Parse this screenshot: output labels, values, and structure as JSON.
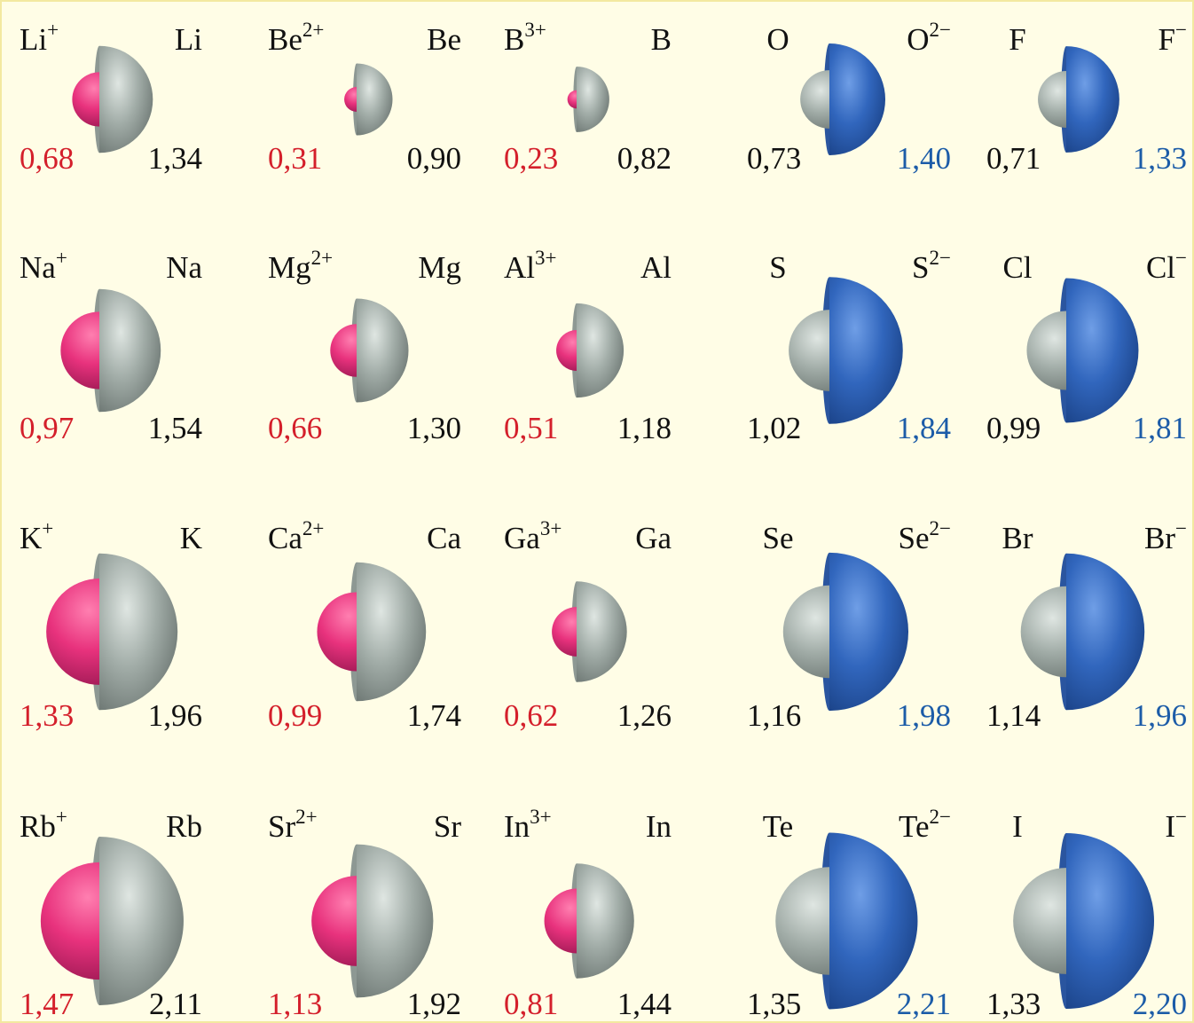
{
  "rows": [
    {
      "cations": [
        {
          "ion": "Li",
          "ion_charge": "+",
          "atom": "Li",
          "ion_radius": "0,68",
          "atom_radius": "1,34"
        },
        {
          "ion": "Be",
          "ion_charge": "2+",
          "atom": "Be",
          "ion_radius": "0,31",
          "atom_radius": "0,90"
        },
        {
          "ion": "B",
          "ion_charge": "3+",
          "atom": "B",
          "ion_radius": "0,23",
          "atom_radius": "0,82"
        }
      ],
      "anions": [
        {
          "atom": "O",
          "ion": "O",
          "ion_charge": "2−",
          "atom_radius": "0,73",
          "ion_radius": "1,40"
        },
        {
          "atom": "F",
          "ion": "F",
          "ion_charge": "−",
          "atom_radius": "0,71",
          "ion_radius": "1,33"
        }
      ]
    },
    {
      "cations": [
        {
          "ion": "Na",
          "ion_charge": "+",
          "atom": "Na",
          "ion_radius": "0,97",
          "atom_radius": "1,54"
        },
        {
          "ion": "Mg",
          "ion_charge": "2+",
          "atom": "Mg",
          "ion_radius": "0,66",
          "atom_radius": "1,30"
        },
        {
          "ion": "Al",
          "ion_charge": "3+",
          "atom": "Al",
          "ion_radius": "0,51",
          "atom_radius": "1,18"
        }
      ],
      "anions": [
        {
          "atom": "S",
          "ion": "S",
          "ion_charge": "2−",
          "atom_radius": "1,02",
          "ion_radius": "1,84"
        },
        {
          "atom": "Cl",
          "ion": "Cl",
          "ion_charge": "−",
          "atom_radius": "0,99",
          "ion_radius": "1,81"
        }
      ]
    },
    {
      "cations": [
        {
          "ion": "K",
          "ion_charge": "+",
          "atom": "K",
          "ion_radius": "1,33",
          "atom_radius": "1,96"
        },
        {
          "ion": "Ca",
          "ion_charge": "2+",
          "atom": "Ca",
          "ion_radius": "0,99",
          "atom_radius": "1,74"
        },
        {
          "ion": "Ga",
          "ion_charge": "3+",
          "atom": "Ga",
          "ion_radius": "0,62",
          "atom_radius": "1,26"
        }
      ],
      "anions": [
        {
          "atom": "Se",
          "ion": "Se",
          "ion_charge": "2−",
          "atom_radius": "1,16",
          "ion_radius": "1,98"
        },
        {
          "atom": "Br",
          "ion": "Br",
          "ion_charge": "−",
          "atom_radius": "1,14",
          "ion_radius": "1,96"
        }
      ]
    },
    {
      "cations": [
        {
          "ion": "Rb",
          "ion_charge": "+",
          "atom": "Rb",
          "ion_radius": "1,47",
          "atom_radius": "2,11"
        },
        {
          "ion": "Sr",
          "ion_charge": "2+",
          "atom": "Sr",
          "ion_radius": "1,13",
          "atom_radius": "1,92"
        },
        {
          "ion": "In",
          "ion_charge": "3+",
          "atom": "In",
          "ion_radius": "0,81",
          "atom_radius": "1,44"
        }
      ],
      "anions": [
        {
          "atom": "Te",
          "ion": "Te",
          "ion_charge": "2−",
          "atom_radius": "1,35",
          "ion_radius": "2,21"
        },
        {
          "atom": "I",
          "ion": "I",
          "ion_charge": "−",
          "atom_radius": "1,33",
          "ion_radius": "2,20"
        }
      ]
    }
  ]
}
